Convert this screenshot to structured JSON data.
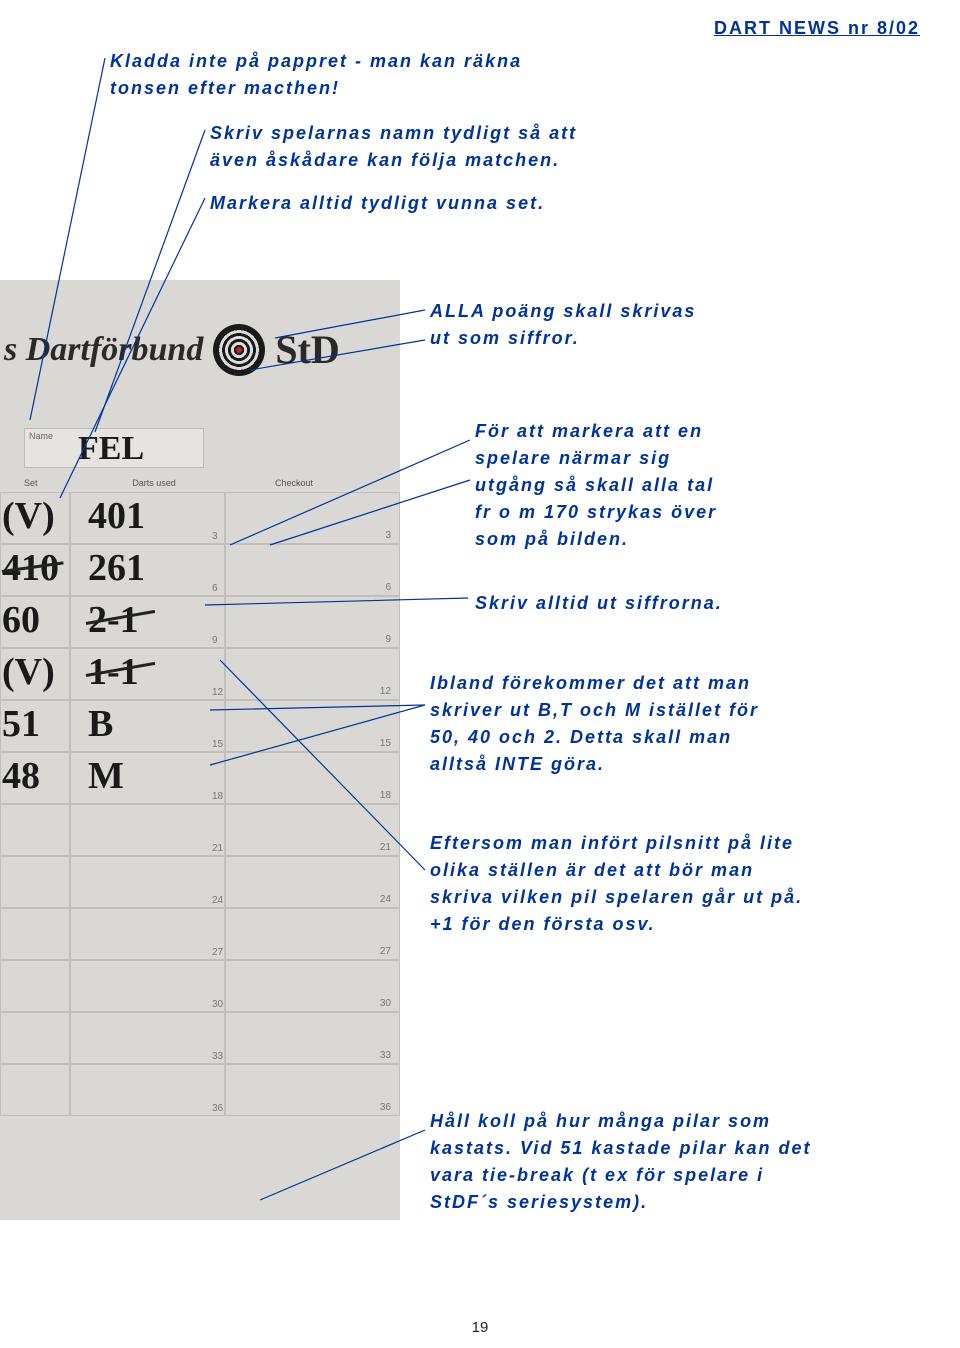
{
  "header": {
    "issue": "DART NEWS nr 8/02"
  },
  "annotations": {
    "a1": "Kladda inte på pappret - man kan räkna\ntonsen efter macthen!",
    "a2": "Skriv spelarnas namn tydligt så att\näven åskådare kan följa matchen.",
    "a3": "Markera alltid tydligt vunna set.",
    "a4": "ALLA poäng skall skrivas\nut som siffror.",
    "a5": "För att markera att en\nspelare närmar sig\nutgång så skall alla tal\nfr o m 170 strykas över\nsom på bilden.",
    "a6": "Skriv alltid ut siffrorna.",
    "a7": "Ibland förekommer det att man\nskriver ut B,T och M istället för\n50, 40 och 2. Detta skall man\nalltså INTE göra.",
    "a8": "Eftersom man infört pilsnitt på lite\nolika ställen är det att bör man\nskriva vilken pil spelaren går ut på.\n+1 för den första osv.",
    "a9": "Håll koll på hur många pilar som\nkastats. Vid 51 kastade pilar kan det\nvara tie-break (t ex för spelare i\nStDF´s seriesystem)."
  },
  "scoreboard": {
    "brand": "s Dartförbund",
    "logo_side": "StD",
    "name_label": "Name",
    "player_name": "FEL",
    "col_labels": {
      "set": "Set",
      "darts": "Darts used",
      "checkout": "Checkout"
    },
    "rows": [
      {
        "n": "3",
        "left": "(V)",
        "score": "401"
      },
      {
        "n": "6",
        "left": "410",
        "score": "261",
        "strike_left": true
      },
      {
        "n": "9",
        "left": "60",
        "score": "2-1",
        "strike_score": true
      },
      {
        "n": "12",
        "left": "(V)",
        "score": "1-1",
        "strike_score": true
      },
      {
        "n": "15",
        "left": "51",
        "score": "B"
      },
      {
        "n": "18",
        "left": "48",
        "score": "M"
      },
      {
        "n": "21",
        "left": "",
        "score": ""
      },
      {
        "n": "24",
        "left": "",
        "score": ""
      },
      {
        "n": "27",
        "left": "",
        "score": ""
      },
      {
        "n": "30",
        "left": "",
        "score": ""
      },
      {
        "n": "33",
        "left": "",
        "score": ""
      },
      {
        "n": "36",
        "left": "",
        "score": ""
      }
    ]
  },
  "page_number": "19",
  "colors": {
    "annotation": "#003399",
    "paper": "#d9d8d4",
    "ink": "#1a1a1a",
    "grid": "#c0bfbb"
  }
}
